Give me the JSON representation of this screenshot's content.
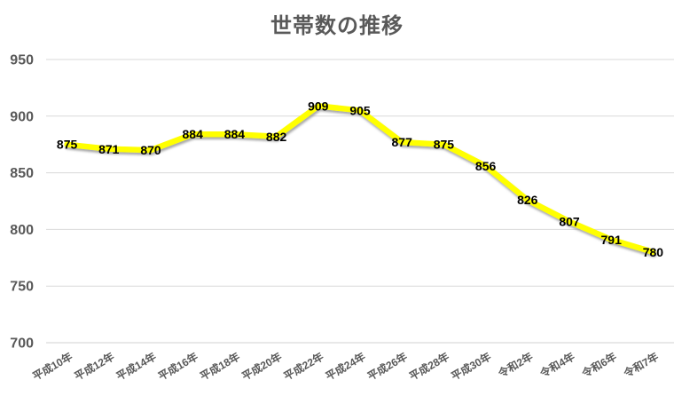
{
  "chart_data": {
    "type": "line",
    "title": "世帯数の推移",
    "categories": [
      "平成10年",
      "平成12年",
      "平成14年",
      "平成16年",
      "平成18年",
      "平成20年",
      "平成22年",
      "平成24年",
      "平成26年",
      "平成28年",
      "平成30年",
      "令和2年",
      "令和4年",
      "令和6年",
      "令和7年"
    ],
    "values": [
      875,
      871,
      870,
      884,
      884,
      882,
      909,
      905,
      877,
      875,
      856,
      826,
      807,
      791,
      780
    ],
    "yticks": [
      700,
      750,
      800,
      850,
      900,
      950
    ],
    "ylim": [
      700,
      950
    ],
    "ytick_step": 50,
    "grid": "horizontal",
    "legend": "none",
    "data_label_position": "center",
    "x_tick_rotation_deg": -30,
    "colors": {
      "line": "#FFFF00",
      "line_shadow": "#8a8a8a",
      "data_label": "#000000",
      "title": "#595959",
      "axis_text": "#595959",
      "gridline": "#D9D9D9",
      "axis_line": "#D1D1D1",
      "background": "#FFFFFF"
    }
  }
}
